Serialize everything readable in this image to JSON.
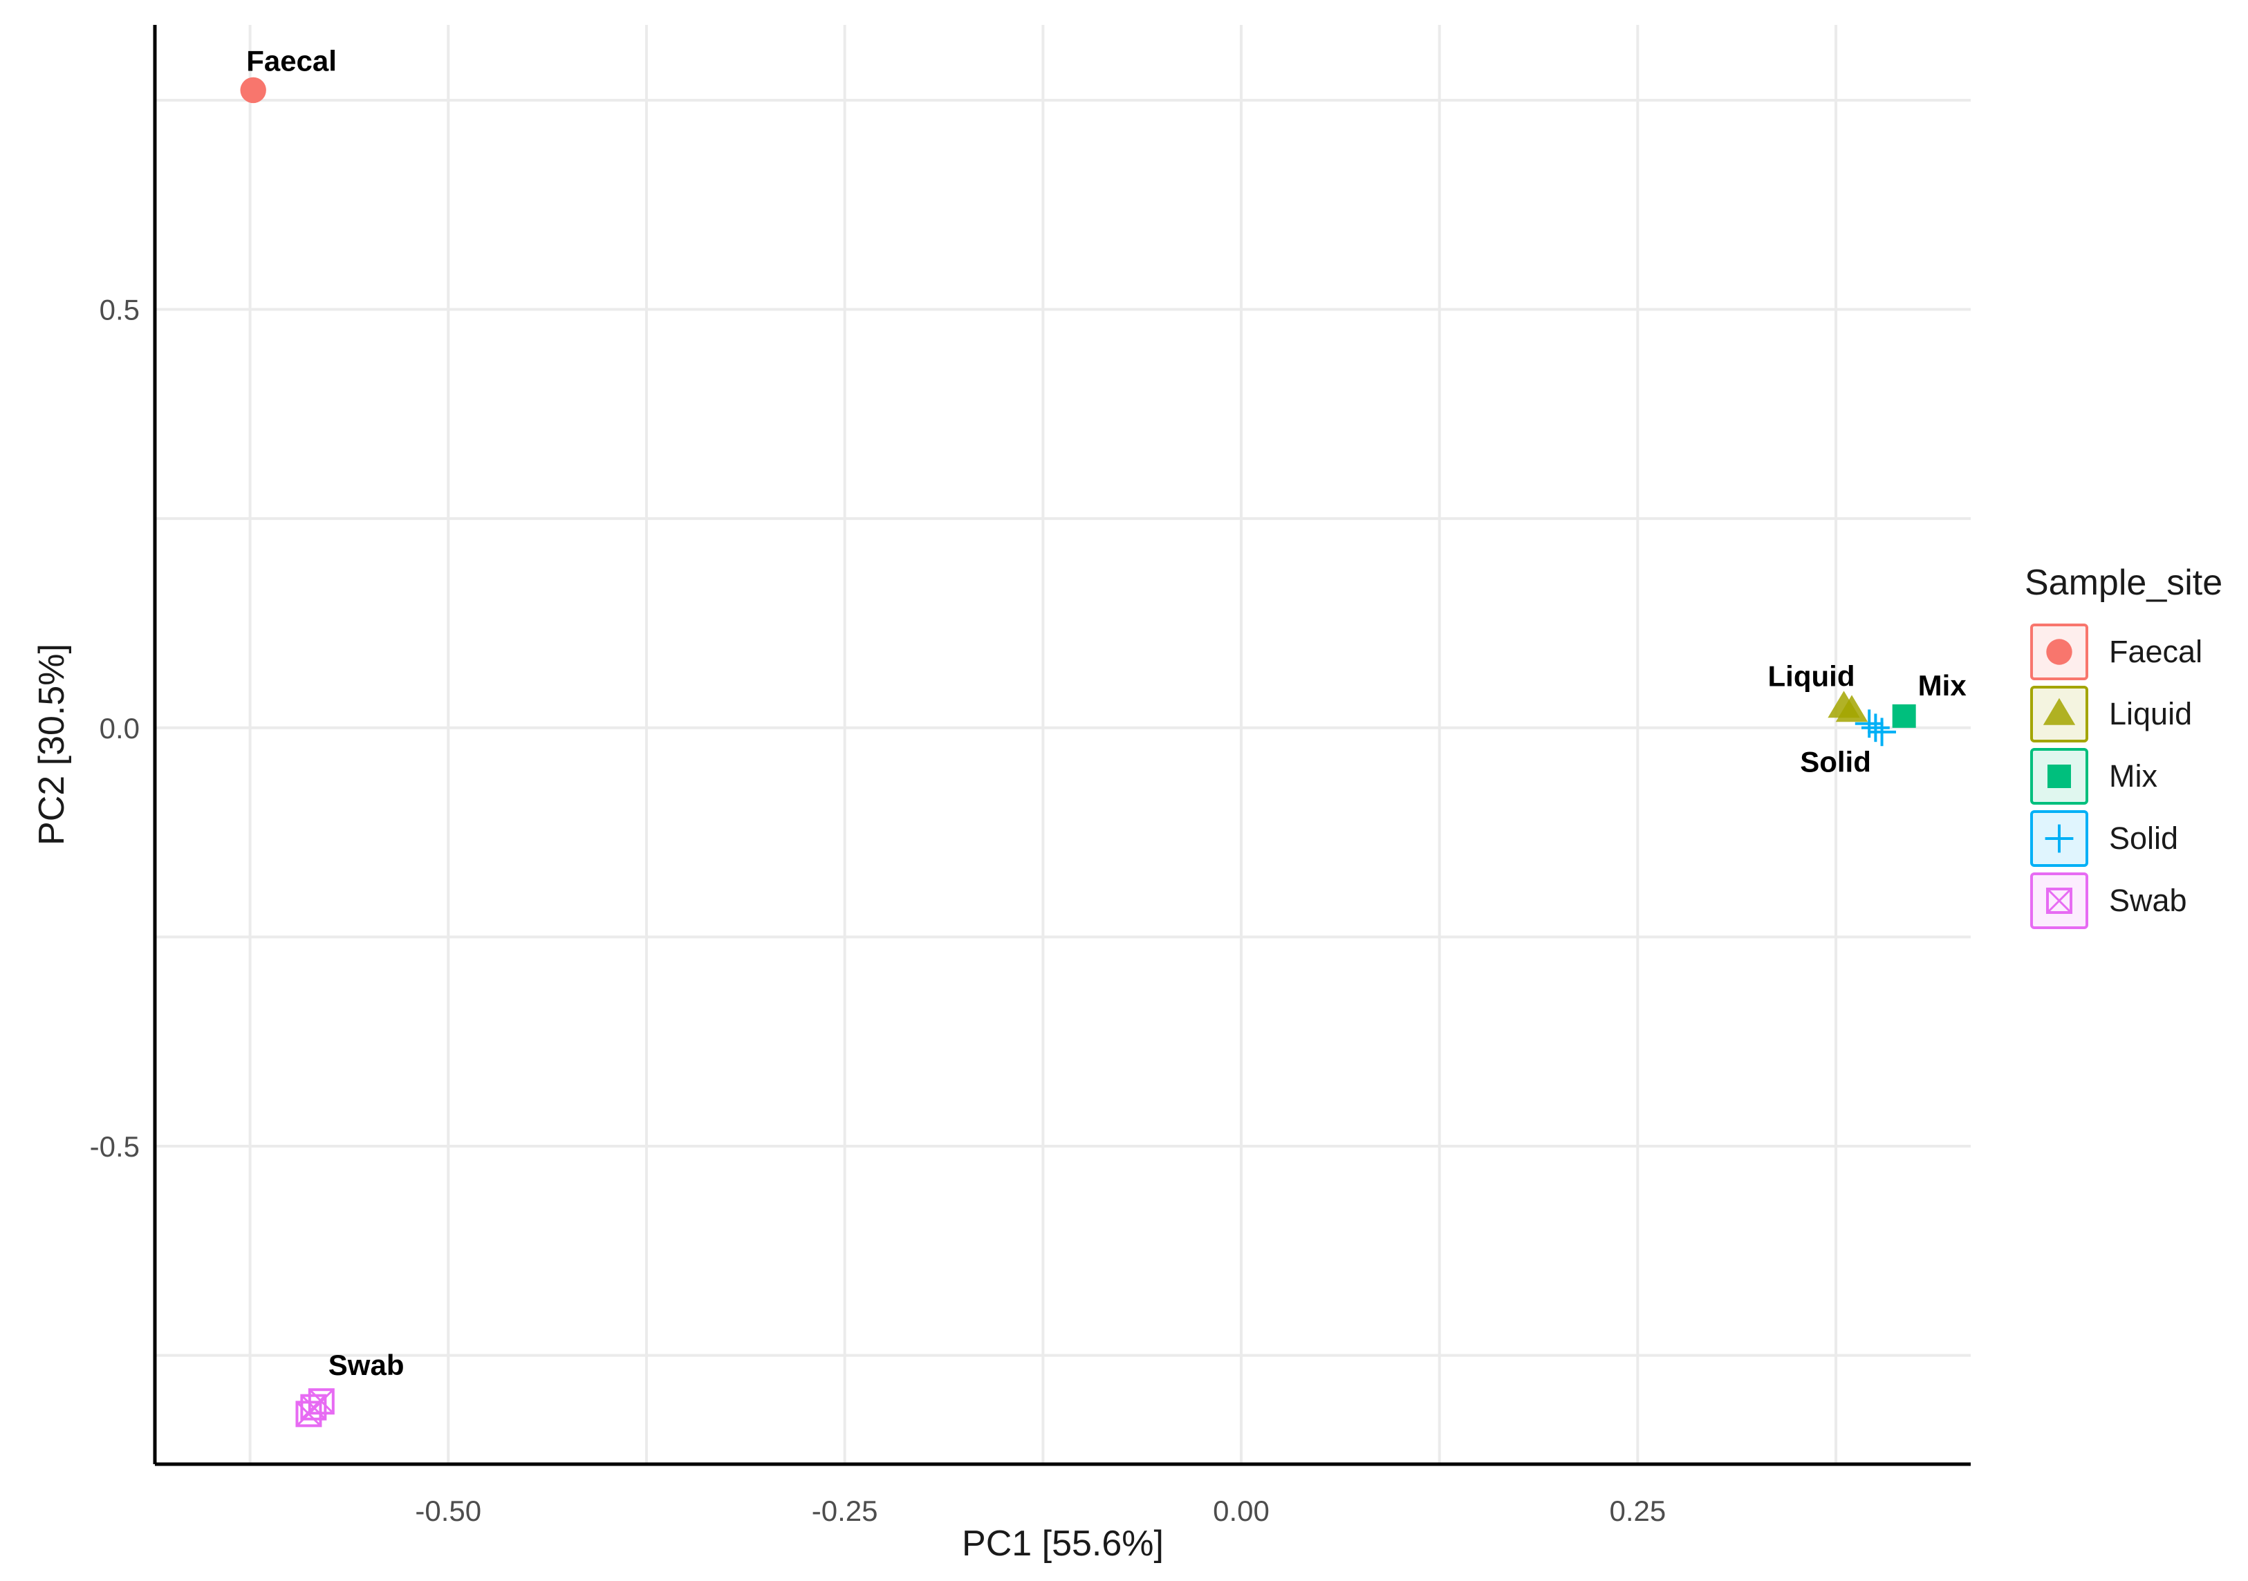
{
  "chart_data": {
    "type": "scatter",
    "title": "",
    "xlabel": "PC1 [55.6%]",
    "ylabel": "PC2 [30.5%]",
    "xlim": [
      -0.685,
      0.46
    ],
    "ylim": [
      -0.88,
      0.84
    ],
    "x_ticks": [
      -0.5,
      -0.25,
      0.0,
      0.25
    ],
    "x_tick_labels": [
      "-0.50",
      "-0.25",
      "0.00",
      "0.25"
    ],
    "y_ticks": [
      -0.5,
      0.0,
      0.5
    ],
    "y_tick_labels": [
      "-0.5",
      "0.0",
      "0.5"
    ],
    "grid": true,
    "legend": {
      "title": "Sample_site",
      "position": "right",
      "items": [
        {
          "label": "Faecal",
          "color": "#F8766D",
          "shape": "circle"
        },
        {
          "label": "Liquid",
          "color": "#A3A500",
          "shape": "triangle"
        },
        {
          "label": "Mix",
          "color": "#00BF7D",
          "shape": "square"
        },
        {
          "label": "Solid",
          "color": "#00B0F6",
          "shape": "plus"
        },
        {
          "label": "Swab",
          "color": "#E76BF3",
          "shape": "square-cross"
        }
      ]
    },
    "series": [
      {
        "name": "Faecal",
        "color": "#F8766D",
        "shape": "circle",
        "points": [
          [
            -0.623,
            0.762
          ]
        ],
        "label": "Faecal"
      },
      {
        "name": "Liquid",
        "color": "#A3A500",
        "shape": "triangle",
        "points": [
          [
            0.38,
            0.025
          ],
          [
            0.385,
            0.02
          ]
        ],
        "label": "Liquid"
      },
      {
        "name": "Mix",
        "color": "#00BF7D",
        "shape": "square",
        "points": [
          [
            0.418,
            0.014
          ]
        ],
        "label": "Mix"
      },
      {
        "name": "Solid",
        "color": "#00B0F6",
        "shape": "plus",
        "points": [
          [
            0.396,
            0.005
          ],
          [
            0.4,
            0.0
          ],
          [
            0.404,
            -0.005
          ]
        ],
        "label": "Solid"
      },
      {
        "name": "Swab",
        "color": "#E76BF3",
        "shape": "square-cross",
        "points": [
          [
            -0.58,
            -0.805
          ],
          [
            -0.585,
            -0.812
          ],
          [
            -0.588,
            -0.82
          ]
        ],
        "label": "Swab"
      }
    ]
  }
}
